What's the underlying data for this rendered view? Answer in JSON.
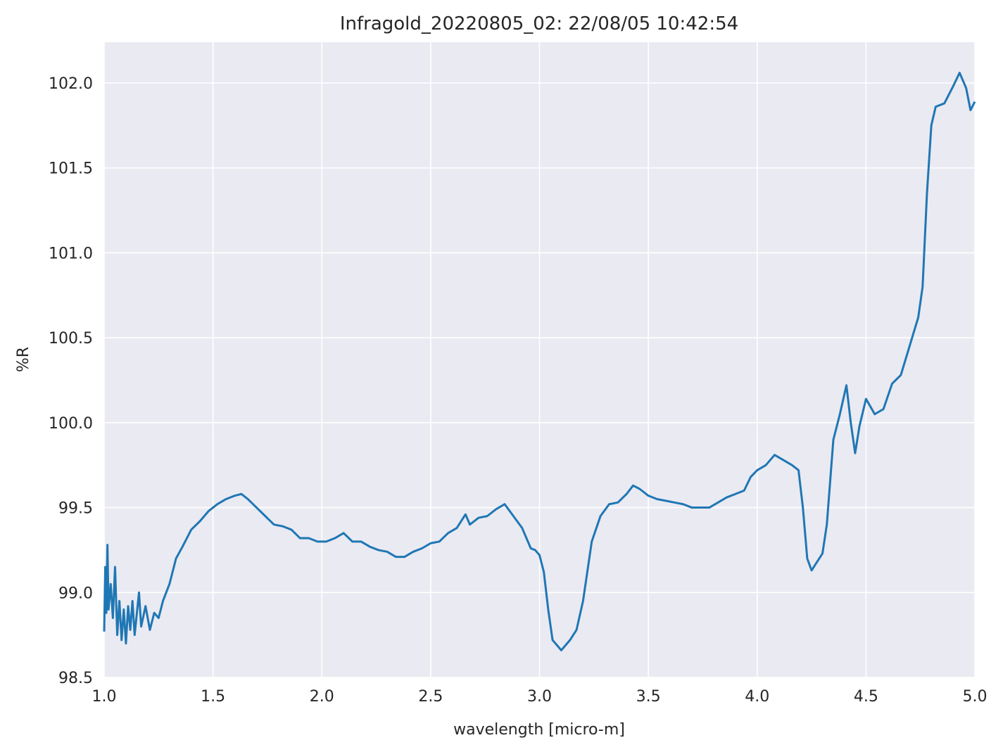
{
  "chart_data": {
    "type": "line",
    "title": "Infragold_20220805_02:  22/08/05 10:42:54",
    "x_label": "wavelength [micro-m]",
    "y_label": "%R",
    "color": "#1f77b4",
    "grid": true,
    "xlim": [
      1.0,
      5.0
    ],
    "ylim": [
      98.5,
      102.24
    ],
    "xticks": [
      {
        "value": 1.0,
        "label": "1.0"
      },
      1.5,
      {
        "value": 2.0,
        "label": "2.0"
      },
      2.5,
      {
        "value": 3.0,
        "label": "3.0"
      },
      3.5,
      {
        "value": 4.0,
        "label": "4.0"
      },
      4.5,
      {
        "value": 5.0,
        "label": "5.0"
      }
    ],
    "yticks": [
      98.5,
      {
        "value": 99.0,
        "label": "99.0"
      },
      99.5,
      {
        "value": 100.0,
        "label": "100.0"
      },
      100.5,
      {
        "value": 101.0,
        "label": "101.0"
      },
      101.5,
      {
        "value": 102.0,
        "label": "102.0"
      }
    ],
    "x": [
      1.0,
      1.005,
      1.01,
      1.015,
      1.02,
      1.03,
      1.04,
      1.05,
      1.06,
      1.07,
      1.08,
      1.09,
      1.1,
      1.11,
      1.12,
      1.13,
      1.14,
      1.16,
      1.17,
      1.19,
      1.21,
      1.23,
      1.25,
      1.27,
      1.3,
      1.33,
      1.36,
      1.4,
      1.44,
      1.48,
      1.52,
      1.56,
      1.6,
      1.63,
      1.66,
      1.7,
      1.74,
      1.78,
      1.82,
      1.86,
      1.9,
      1.94,
      1.98,
      2.02,
      2.06,
      2.1,
      2.14,
      2.18,
      2.22,
      2.26,
      2.3,
      2.34,
      2.38,
      2.42,
      2.46,
      2.5,
      2.54,
      2.58,
      2.62,
      2.66,
      2.68,
      2.72,
      2.76,
      2.8,
      2.84,
      2.88,
      2.92,
      2.96,
      2.98,
      3.0,
      3.02,
      3.04,
      3.06,
      3.1,
      3.14,
      3.17,
      3.2,
      3.24,
      3.28,
      3.32,
      3.36,
      3.4,
      3.43,
      3.46,
      3.5,
      3.54,
      3.58,
      3.62,
      3.66,
      3.7,
      3.74,
      3.78,
      3.82,
      3.86,
      3.9,
      3.94,
      3.97,
      4.0,
      4.04,
      4.08,
      4.12,
      4.16,
      4.19,
      4.21,
      4.23,
      4.25,
      4.27,
      4.3,
      4.32,
      4.35,
      4.38,
      4.41,
      4.43,
      4.45,
      4.47,
      4.5,
      4.54,
      4.58,
      4.62,
      4.66,
      4.7,
      4.74,
      4.76,
      4.78,
      4.8,
      4.82,
      4.86,
      4.9,
      4.93,
      4.96,
      4.98,
      5.0
    ],
    "values": [
      98.77,
      99.15,
      98.88,
      99.28,
      98.9,
      99.05,
      98.85,
      99.15,
      98.75,
      98.95,
      98.72,
      98.9,
      98.7,
      98.92,
      98.78,
      98.95,
      98.75,
      99.0,
      98.8,
      98.92,
      98.78,
      98.88,
      98.85,
      98.95,
      99.05,
      99.2,
      99.27,
      99.37,
      99.42,
      99.48,
      99.52,
      99.55,
      99.57,
      99.58,
      99.55,
      99.5,
      99.45,
      99.4,
      99.39,
      99.37,
      99.32,
      99.32,
      99.3,
      99.3,
      99.32,
      99.35,
      99.3,
      99.3,
      99.27,
      99.25,
      99.24,
      99.21,
      99.21,
      99.24,
      99.26,
      99.29,
      99.3,
      99.35,
      99.38,
      99.46,
      99.4,
      99.44,
      99.45,
      99.49,
      99.52,
      99.45,
      99.38,
      99.26,
      99.25,
      99.22,
      99.12,
      98.9,
      98.72,
      98.66,
      98.72,
      98.78,
      98.95,
      99.3,
      99.45,
      99.52,
      99.53,
      99.58,
      99.63,
      99.61,
      99.57,
      99.55,
      99.54,
      99.53,
      99.52,
      99.5,
      99.5,
      99.5,
      99.53,
      99.56,
      99.58,
      99.6,
      99.68,
      99.72,
      99.75,
      99.81,
      99.78,
      99.75,
      99.72,
      99.5,
      99.2,
      99.13,
      99.17,
      99.23,
      99.4,
      99.9,
      100.05,
      100.22,
      100.0,
      99.82,
      99.98,
      100.14,
      100.05,
      100.08,
      100.23,
      100.28,
      100.45,
      100.62,
      100.8,
      101.35,
      101.75,
      101.86,
      101.88,
      101.98,
      102.06,
      101.97,
      101.84,
      101.89
    ]
  }
}
